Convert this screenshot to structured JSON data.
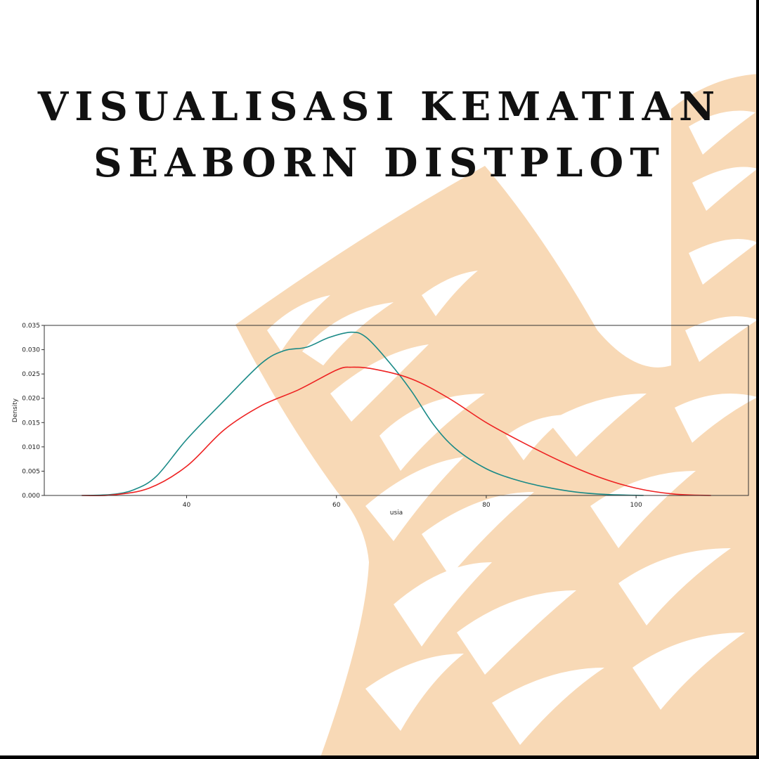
{
  "header": {
    "title_line1": "VISUALISASI KEMATIAN",
    "title_line2": "SEABORN DISTPLOT"
  },
  "colors": {
    "background": "#ffffff",
    "decoration": "#f8d9b6",
    "series_1": "#1a8a87",
    "series_2": "#ee2222"
  },
  "chart_data": {
    "type": "line",
    "title": "",
    "xlabel": "usia",
    "ylabel": "Density",
    "xlim": [
      21,
      115
    ],
    "ylim": [
      0,
      0.035
    ],
    "x_ticks": [
      40,
      60,
      80,
      100
    ],
    "y_ticks": [
      0.0,
      0.005,
      0.01,
      0.015,
      0.02,
      0.025,
      0.03,
      0.035
    ],
    "y_tick_labels": [
      "0.000",
      "0.005",
      "0.010",
      "0.015",
      "0.020",
      "0.025",
      "0.030",
      "0.035"
    ],
    "grid": false,
    "legend": "none",
    "series": [
      {
        "color": "#1a8a87",
        "x": [
          26,
          30,
          33,
          36,
          40,
          45,
          50,
          53,
          56,
          59,
          62,
          64,
          67,
          70,
          73,
          76,
          80,
          84,
          88,
          92,
          96,
          101
        ],
        "y": [
          0.0,
          0.0002,
          0.0012,
          0.004,
          0.0115,
          0.0195,
          0.0272,
          0.0298,
          0.0305,
          0.0325,
          0.0336,
          0.0325,
          0.0275,
          0.0215,
          0.0145,
          0.0095,
          0.0055,
          0.0032,
          0.0017,
          0.0007,
          0.0002,
          0.0
        ]
      },
      {
        "color": "#ee2222",
        "x": [
          26,
          30,
          35,
          40,
          45,
          50,
          55,
          60,
          62,
          65,
          70,
          75,
          80,
          85,
          90,
          95,
          100,
          105,
          110
        ],
        "y": [
          0.0,
          0.0001,
          0.0015,
          0.006,
          0.0135,
          0.0185,
          0.0218,
          0.0258,
          0.0264,
          0.026,
          0.024,
          0.02,
          0.015,
          0.0108,
          0.007,
          0.0038,
          0.0015,
          0.0003,
          0.0
        ]
      }
    ]
  }
}
